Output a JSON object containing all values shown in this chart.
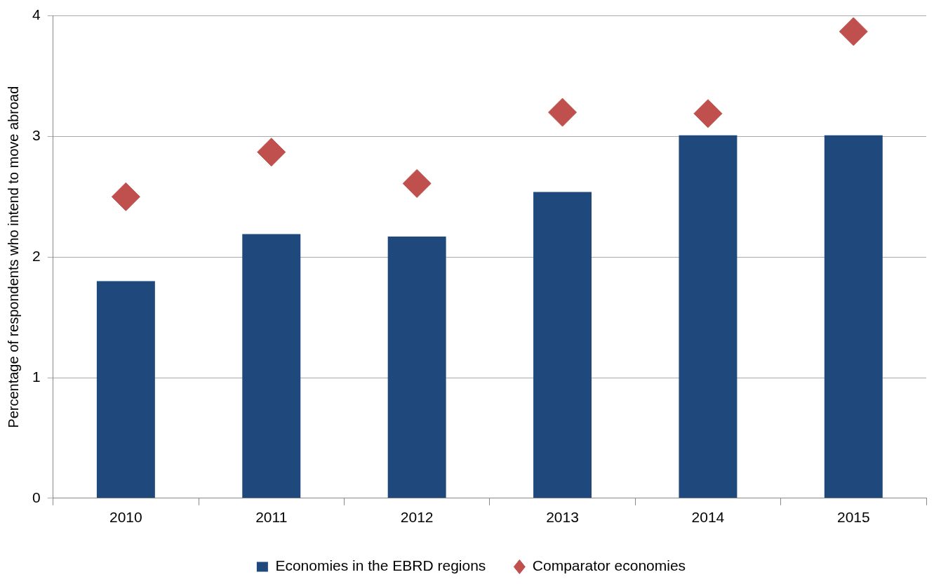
{
  "chart_data": {
    "type": "bar",
    "ylabel": "Percentage of respondents who intend to move abroad",
    "categories": [
      "2010",
      "2011",
      "2012",
      "2013",
      "2014",
      "2015"
    ],
    "series": [
      {
        "name": "Economies in the EBRD regions",
        "color": "#1f497d",
        "values": [
          1.8,
          2.19,
          2.17,
          2.54,
          3.01,
          3.01
        ]
      },
      {
        "name": "Comparator economies",
        "type": "scatter",
        "color": "#c0504d",
        "marker": "diamond",
        "values": [
          2.5,
          2.87,
          2.61,
          3.2,
          3.19,
          3.87
        ]
      }
    ],
    "ylim": [
      0,
      4
    ],
    "yticks": [
      0,
      1,
      2,
      3,
      4
    ],
    "grid": "y",
    "legend": "bottom"
  }
}
